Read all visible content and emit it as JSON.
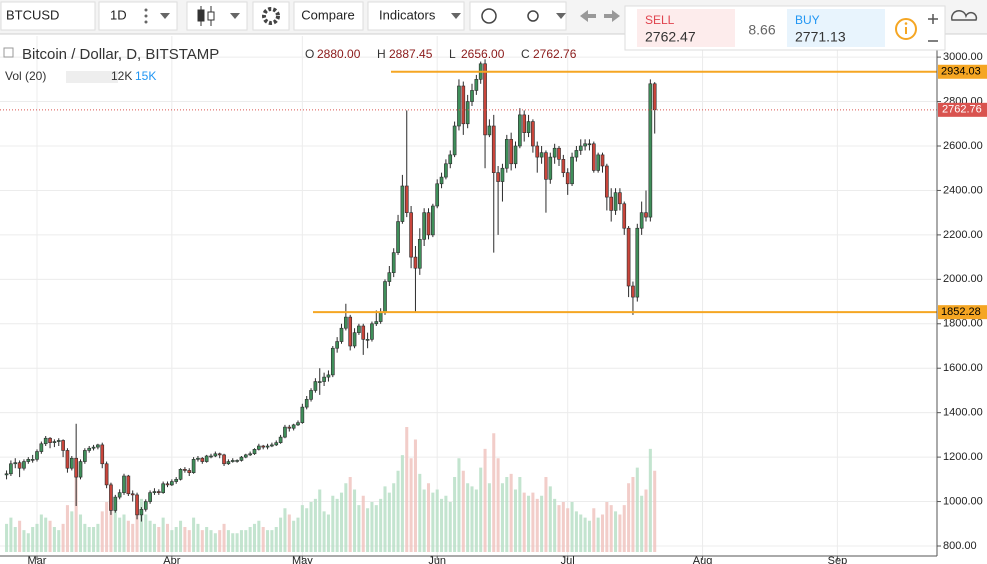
{
  "toolbar": {
    "symbol": "BTCUSD",
    "interval": "1D",
    "compare": "Compare",
    "indicators": "Indicators"
  },
  "trade_widget": {
    "sell_label": "SELL",
    "sell_price": "2762.47",
    "spread": "8.66",
    "buy_label": "BUY",
    "buy_price": "2771.13"
  },
  "chart_data": {
    "type": "candlestick",
    "title": "Bitcoin / Dollar, D, BITSTAMP",
    "ohlc_legend": [
      {
        "key": "O",
        "value": "2880.00"
      },
      {
        "key": "H",
        "value": "2887.45"
      },
      {
        "key": "L",
        "value": "2656.00"
      },
      {
        "key": "C",
        "value": "2762.76"
      }
    ],
    "volume_legend": {
      "name": "Vol (20)",
      "values": [
        "12K",
        "15K"
      ]
    },
    "categories": [
      null,
      null,
      null,
      null,
      null,
      null,
      null,
      "Mar",
      null,
      null,
      null,
      null,
      null,
      null,
      null,
      null,
      null,
      null,
      null,
      null,
      null,
      null,
      null,
      null,
      null,
      null,
      null,
      null,
      null,
      null,
      null,
      null,
      null,
      null,
      null,
      null,
      null,
      null,
      "Apr",
      null,
      null,
      null,
      null,
      null,
      null,
      null,
      null,
      null,
      null,
      null,
      null,
      null,
      null,
      null,
      null,
      null,
      null,
      null,
      null,
      null,
      null,
      null,
      null,
      null,
      null,
      null,
      null,
      null,
      "May",
      null,
      null,
      null,
      null,
      null,
      null,
      null,
      null,
      null,
      null,
      null,
      null,
      null,
      null,
      null,
      null,
      null,
      null,
      null,
      null,
      null,
      null,
      null,
      null,
      null,
      null,
      null,
      null,
      null,
      null,
      "Jun",
      null,
      null,
      null,
      null,
      null,
      null,
      null,
      null,
      null,
      null,
      null,
      null,
      null,
      null,
      null,
      null,
      null,
      null,
      null,
      null,
      null,
      null,
      null,
      null,
      null,
      null,
      null,
      null,
      null,
      "Jul",
      null,
      null,
      null,
      null,
      null,
      null,
      null,
      null,
      null,
      null,
      null,
      null,
      null,
      null,
      null,
      null,
      null,
      null,
      null,
      null
    ],
    "future_month_labels": [
      "Aug",
      "Sep"
    ],
    "open": [
      1120,
      1125,
      1170,
      1175,
      1150,
      1180,
      1190,
      1190,
      1225,
      1260,
      1285,
      1265,
      1270,
      1275,
      1230,
      1150,
      1195,
      1110,
      1180,
      1230,
      1240,
      1245,
      1255,
      1170,
      1075,
      960,
      1020,
      1040,
      1115,
      1035,
      1030,
      940,
      965,
      1000,
      1040,
      1045,
      1040,
      1080,
      1075,
      1090,
      1100,
      1145,
      1140,
      1130,
      1190,
      1195,
      1180,
      1205,
      1205,
      1215,
      1210,
      1170,
      1180,
      1185,
      1185,
      1200,
      1210,
      1215,
      1235,
      1250,
      1245,
      1250,
      1255,
      1265,
      1290,
      1335,
      1330,
      1345,
      1355,
      1425,
      1460,
      1500,
      1540,
      1540,
      1560,
      1570,
      1690,
      1720,
      1780,
      1830,
      1700,
      1760,
      1790,
      1730,
      1730,
      1800,
      1810,
      1850,
      1990,
      2030,
      2120,
      2260,
      2420,
      2300,
      2100,
      2050,
      2180,
      2300,
      2200,
      2330,
      2430,
      2460,
      2520,
      2560,
      2690,
      2870,
      2700,
      2800,
      2850,
      2900,
      2970,
      2650,
      2690,
      2480,
      2440,
      2500,
      2630,
      2520,
      2600,
      2740,
      2660,
      2710,
      2600,
      2550,
      2570,
      2450,
      2550,
      2590,
      2540,
      2480,
      2430,
      2550,
      2580,
      2600,
      2610,
      2610,
      2490,
      2560,
      2510,
      2370,
      2310,
      2390,
      2340,
      2230,
      1970,
      1920,
      2230,
      2300,
      2280,
      2880
    ],
    "high": [
      1140,
      1185,
      1195,
      1185,
      1190,
      1200,
      1210,
      1235,
      1270,
      1295,
      1290,
      1280,
      1285,
      1280,
      1240,
      1205,
      1350,
      1190,
      1240,
      1250,
      1255,
      1260,
      1265,
      1180,
      1085,
      1030,
      1055,
      1125,
      1120,
      1050,
      1040,
      975,
      1010,
      1050,
      1060,
      1055,
      1090,
      1090,
      1100,
      1110,
      1150,
      1155,
      1150,
      1200,
      1205,
      1200,
      1210,
      1215,
      1225,
      1220,
      1215,
      1190,
      1195,
      1190,
      1205,
      1215,
      1225,
      1240,
      1260,
      1255,
      1260,
      1265,
      1275,
      1300,
      1345,
      1345,
      1350,
      1365,
      1440,
      1475,
      1510,
      1555,
      1600,
      1580,
      1590,
      1700,
      1740,
      1800,
      1890,
      1840,
      1780,
      1800,
      1800,
      1760,
      1810,
      1860,
      1870,
      2000,
      2060,
      2140,
      2290,
      2470,
      2760,
      2330,
      2150,
      2230,
      2320,
      2320,
      2340,
      2450,
      2480,
      2540,
      2580,
      2710,
      2900,
      2890,
      2830,
      2880,
      2920,
      2980,
      2990,
      2720,
      2740,
      2510,
      2520,
      2650,
      2660,
      2620,
      2770,
      2760,
      2740,
      2720,
      2620,
      2600,
      2580,
      2570,
      2610,
      2600,
      2560,
      2500,
      2570,
      2600,
      2630,
      2630,
      2630,
      2620,
      2570,
      2570,
      2520,
      2410,
      2410,
      2410,
      2350,
      2240,
      1990,
      2250,
      2350,
      2400,
      2900,
      2887.45
    ],
    "low": [
      1100,
      1115,
      1150,
      1110,
      1140,
      1170,
      1175,
      1180,
      1215,
      1250,
      1240,
      1245,
      1250,
      1200,
      1130,
      1140,
      980,
      1100,
      1170,
      1220,
      1230,
      1235,
      1150,
      1060,
      940,
      950,
      1010,
      1030,
      1025,
      1000,
      920,
      910,
      955,
      990,
      1030,
      1030,
      1035,
      1065,
      1070,
      1080,
      1095,
      1130,
      1115,
      1125,
      1180,
      1170,
      1175,
      1195,
      1200,
      1195,
      1160,
      1165,
      1175,
      1175,
      1180,
      1195,
      1205,
      1210,
      1230,
      1235,
      1235,
      1245,
      1250,
      1260,
      1285,
      1315,
      1320,
      1340,
      1350,
      1415,
      1450,
      1490,
      1480,
      1520,
      1540,
      1560,
      1670,
      1710,
      1770,
      1680,
      1690,
      1750,
      1660,
      1690,
      1720,
      1790,
      1800,
      1840,
      1970,
      2010,
      2110,
      2250,
      2280,
      2050,
      1850,
      2020,
      2150,
      2180,
      2190,
      2320,
      2410,
      2450,
      2500,
      2550,
      2670,
      2650,
      2680,
      2780,
      2830,
      2880,
      2500,
      2640,
      2120,
      2200,
      2350,
      2480,
      2490,
      2500,
      2590,
      2620,
      2640,
      2570,
      2480,
      2520,
      2300,
      2430,
      2520,
      2510,
      2460,
      2380,
      2420,
      2530,
      2560,
      2580,
      2580,
      2480,
      2480,
      2480,
      2310,
      2260,
      2290,
      2310,
      2200,
      1920,
      1840,
      1900,
      2200,
      2260,
      2260,
      2656
    ],
    "close": [
      1125,
      1170,
      1175,
      1150,
      1180,
      1190,
      1190,
      1225,
      1260,
      1285,
      1265,
      1270,
      1275,
      1230,
      1150,
      1195,
      1110,
      1180,
      1230,
      1240,
      1245,
      1255,
      1170,
      1075,
      960,
      1020,
      1040,
      1115,
      1035,
      1030,
      940,
      965,
      1000,
      1040,
      1045,
      1040,
      1080,
      1075,
      1090,
      1100,
      1145,
      1140,
      1130,
      1190,
      1195,
      1180,
      1205,
      1205,
      1215,
      1210,
      1170,
      1180,
      1185,
      1185,
      1200,
      1210,
      1215,
      1235,
      1250,
      1245,
      1250,
      1255,
      1265,
      1290,
      1335,
      1330,
      1345,
      1355,
      1425,
      1460,
      1500,
      1540,
      1540,
      1560,
      1570,
      1690,
      1720,
      1780,
      1830,
      1700,
      1760,
      1790,
      1730,
      1730,
      1800,
      1810,
      1850,
      1990,
      2030,
      2120,
      2260,
      2420,
      2300,
      2100,
      2050,
      2180,
      2300,
      2200,
      2330,
      2430,
      2460,
      2520,
      2560,
      2690,
      2870,
      2700,
      2800,
      2850,
      2900,
      2970,
      2650,
      2690,
      2480,
      2440,
      2500,
      2630,
      2520,
      2600,
      2740,
      2660,
      2710,
      2600,
      2550,
      2570,
      2450,
      2550,
      2590,
      2540,
      2480,
      2430,
      2550,
      2580,
      2600,
      2610,
      2610,
      2490,
      2560,
      2510,
      2370,
      2310,
      2390,
      2340,
      2230,
      1970,
      1920,
      2230,
      2300,
      2280,
      2880,
      2762.76
    ],
    "volume": [
      9000,
      11000,
      8000,
      10000,
      7000,
      6000,
      8000,
      9000,
      12000,
      11000,
      10000,
      8000,
      7000,
      9000,
      15000,
      13000,
      26000,
      12000,
      9000,
      8000,
      8000,
      9000,
      13000,
      16000,
      22000,
      14000,
      11000,
      12000,
      10000,
      9000,
      15000,
      17000,
      12000,
      10000,
      9000,
      8000,
      11000,
      9000,
      7000,
      8000,
      10000,
      8000,
      7000,
      11000,
      9000,
      7000,
      8000,
      7000,
      6000,
      7000,
      9000,
      7000,
      6000,
      6000,
      7000,
      7000,
      8000,
      9000,
      10000,
      8000,
      7000,
      7000,
      8000,
      11000,
      14000,
      12000,
      10000,
      11000,
      15000,
      14000,
      16000,
      17000,
      20000,
      13000,
      12000,
      18000,
      17000,
      19000,
      22000,
      24000,
      20000,
      15000,
      18000,
      14000,
      16000,
      15000,
      17000,
      21000,
      19000,
      22000,
      26000,
      31000,
      40000,
      30000,
      36000,
      25000,
      20000,
      22000,
      19000,
      20000,
      17000,
      18000,
      16000,
      24000,
      30000,
      26000,
      22000,
      21000,
      20000,
      27000,
      33000,
      22000,
      38000,
      30000,
      22000,
      24000,
      25000,
      20000,
      24000,
      19000,
      18000,
      19000,
      17000,
      18000,
      24000,
      21000,
      17000,
      15000,
      16000,
      14000,
      16000,
      13000,
      12000,
      11000,
      10000,
      14000,
      11000,
      12000,
      16000,
      15000,
      13000,
      12000,
      15000,
      22000,
      24000,
      27000,
      18000,
      20000,
      33000,
      26000
    ],
    "up_color": "#3f8f5a",
    "down_color": "#c9453b",
    "volume_up_color": "#b9dfc7",
    "volume_down_color": "#f0c4c0",
    "ylim": [
      755,
      3095
    ],
    "yticks": [
      {
        "value": 800,
        "label": "800.00"
      },
      {
        "value": 1000,
        "label": "1000.00"
      },
      {
        "value": 1200,
        "label": "1200.00"
      },
      {
        "value": 1400,
        "label": "1400.00"
      },
      {
        "value": 1600,
        "label": "1600.00"
      },
      {
        "value": 1800,
        "label": "1800.00"
      },
      {
        "value": 2000,
        "label": "2000.00"
      },
      {
        "value": 2200,
        "label": "2200.00"
      },
      {
        "value": 2400,
        "label": "2400.00"
      },
      {
        "value": 2600,
        "label": "2600.00"
      },
      {
        "value": 2800,
        "label": "2800.00"
      },
      {
        "value": 3000,
        "label": "3000.00"
      }
    ],
    "grid": true,
    "horizontal_lines": [
      2934.03,
      1852.28
    ],
    "horizontal_line_color": "#f5a623",
    "last_price_color": "#d9534f"
  }
}
